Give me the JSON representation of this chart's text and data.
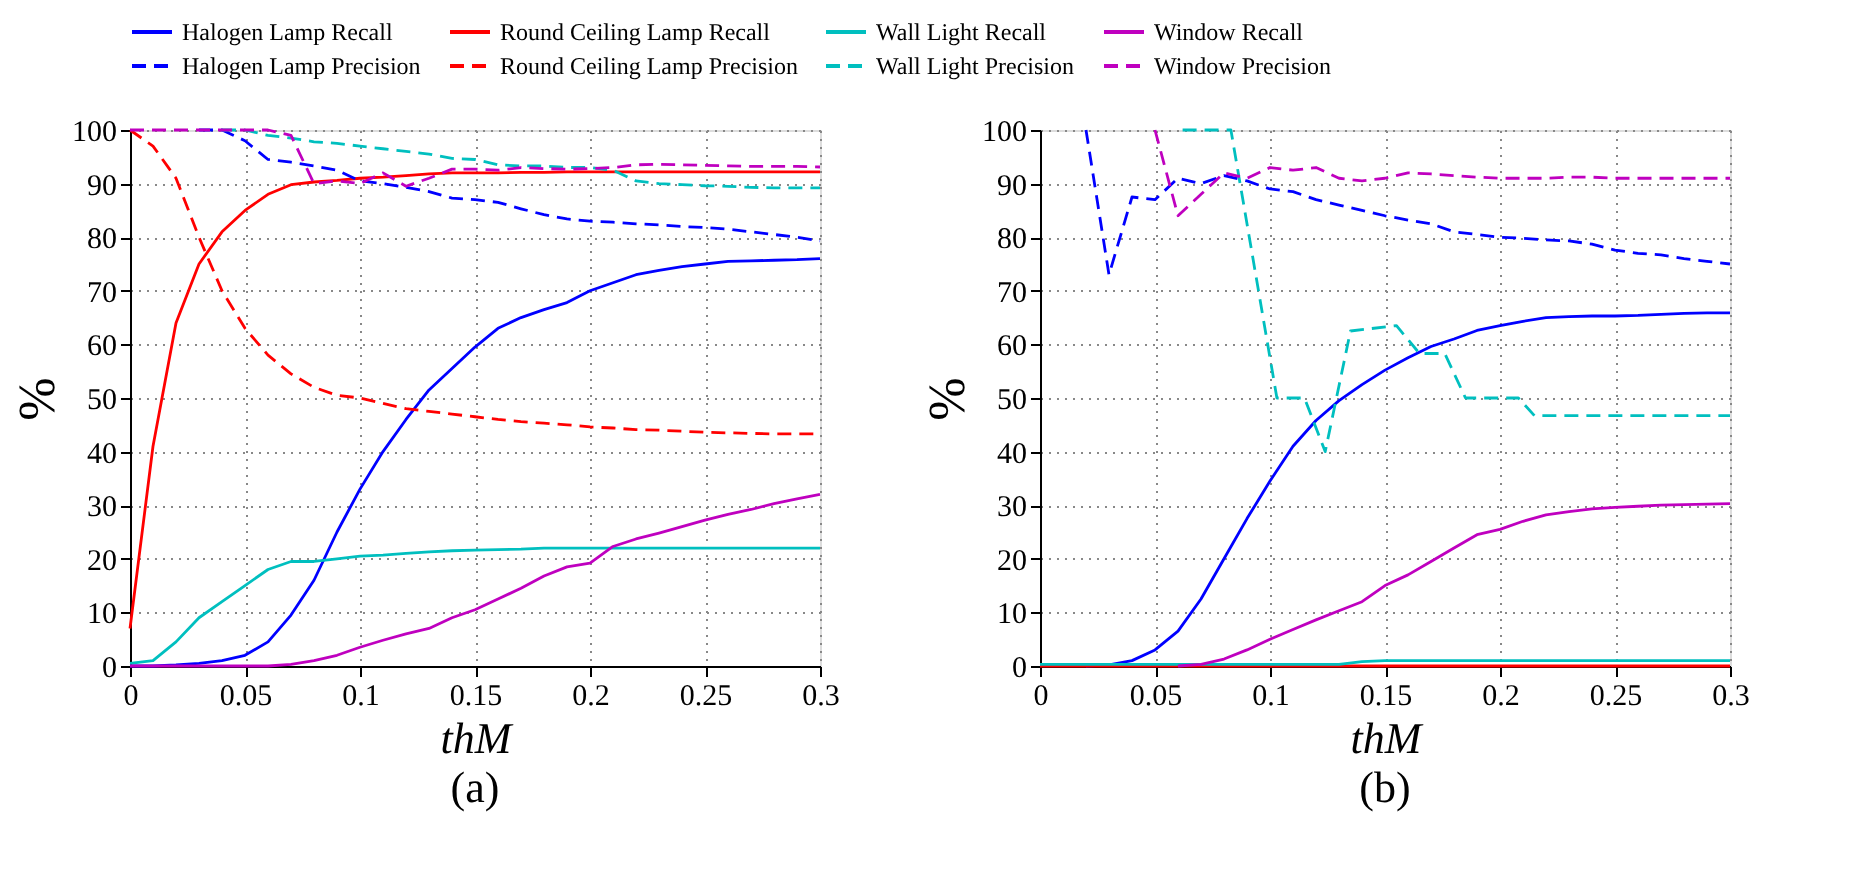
{
  "chart_data": [
    {
      "type": "line",
      "xlabel": "thM",
      "ylabel": "%",
      "annotations": [
        "(a)"
      ],
      "xlim": [
        0,
        0.3
      ],
      "ylim": [
        0,
        100
      ],
      "xticks": [
        0,
        0.05,
        0.1,
        0.15,
        0.2,
        0.25,
        0.3
      ],
      "yticks": [
        0,
        10,
        20,
        30,
        40,
        50,
        60,
        70,
        80,
        90,
        100
      ],
      "grid": true,
      "legend": "top",
      "x": [
        0,
        0.01,
        0.02,
        0.03,
        0.04,
        0.05,
        0.06,
        0.07,
        0.08,
        0.09,
        0.1,
        0.11,
        0.12,
        0.13,
        0.14,
        0.15,
        0.16,
        0.17,
        0.18,
        0.19,
        0.2,
        0.21,
        0.22,
        0.23,
        0.24,
        0.25,
        0.26,
        0.27,
        0.28,
        0.29,
        0.3
      ],
      "series": [
        {
          "name": "Halogen Lamp Recall",
          "color": "#0000ff",
          "line_style": "solid",
          "values": [
            0,
            0,
            0.2,
            0.5,
            1,
            2,
            4.5,
            9.5,
            16,
            25,
            33,
            40,
            46,
            51.5,
            55.5,
            59.5,
            63,
            65,
            66.5,
            67.8,
            70,
            71.5,
            73,
            73.8,
            74.5,
            75,
            75.5,
            75.6,
            75.7,
            75.8,
            76
          ]
        },
        {
          "name": "Round Ceiling Lamp Recall",
          "color": "#ff0000",
          "line_style": "solid",
          "values": [
            7,
            41,
            64,
            75,
            81,
            85,
            88,
            89.8,
            90.3,
            90.6,
            91,
            91.2,
            91.5,
            91.8,
            92,
            92,
            92,
            92.1,
            92.1,
            92.2,
            92.2,
            92.2,
            92.2,
            92.2,
            92.2,
            92.2,
            92.2,
            92.2,
            92.2,
            92.2,
            92.2
          ]
        },
        {
          "name": "Wall Light Recall",
          "color": "#00bfbf",
          "line_style": "solid",
          "values": [
            0.5,
            1,
            4.5,
            9,
            12,
            15,
            18,
            19.5,
            19.5,
            20,
            20.5,
            20.7,
            21,
            21.3,
            21.5,
            21.6,
            21.7,
            21.8,
            22,
            22,
            22,
            22,
            22,
            22,
            22,
            22,
            22,
            22,
            22,
            22,
            22
          ]
        },
        {
          "name": "Window Recall",
          "color": "#bf00bf",
          "line_style": "solid",
          "values": [
            0,
            0,
            0,
            0,
            0,
            0,
            0,
            0.3,
            1,
            2,
            3.5,
            4.8,
            6,
            7,
            9,
            10.5,
            12.5,
            14.5,
            16.8,
            18.5,
            19.2,
            22.3,
            23.7,
            24.8,
            26,
            27.2,
            28.3,
            29.2,
            30.3,
            31.2,
            32
          ]
        },
        {
          "name": "Halogen Lamp Precision",
          "color": "#0000ff",
          "line_style": "dashed",
          "values": [
            null,
            null,
            null,
            100,
            100,
            98,
            94.5,
            94,
            93.3,
            92.5,
            90.5,
            90,
            89.3,
            88.5,
            87.3,
            87,
            86.5,
            85.3,
            84.2,
            83.4,
            83,
            82.8,
            82.5,
            82.3,
            82,
            81.8,
            81.5,
            81,
            80.5,
            80,
            79.3
          ]
        },
        {
          "name": "Round Ceiling Lamp Precision",
          "color": "#ff0000",
          "line_style": "dashed",
          "values": [
            100,
            97,
            91,
            80,
            70,
            63,
            58,
            54.5,
            52,
            50.5,
            50,
            49,
            48,
            47.5,
            47,
            46.5,
            46,
            45.6,
            45.3,
            45,
            44.6,
            44.4,
            44.1,
            44,
            43.8,
            43.6,
            43.5,
            43.4,
            43.3,
            43.3,
            43.3
          ]
        },
        {
          "name": "Wall Light Precision",
          "color": "#00bfbf",
          "line_style": "dashed",
          "values": [
            null,
            null,
            null,
            null,
            100,
            100,
            99,
            98.5,
            97.8,
            97.5,
            97,
            96.5,
            96,
            95.5,
            94.7,
            94.5,
            93.5,
            93.3,
            93.3,
            93,
            93,
            92.5,
            90.5,
            90,
            89.8,
            89.6,
            89.5,
            89.3,
            89.2,
            89.2,
            89.2
          ]
        },
        {
          "name": "Window Precision",
          "color": "#bf00bf",
          "line_style": "dashed",
          "values": [
            100,
            100,
            100,
            100,
            100,
            100,
            100,
            99,
            90,
            90.5,
            90,
            92,
            89.5,
            91,
            92.7,
            92.7,
            92.5,
            93,
            92.8,
            92.7,
            92.8,
            93,
            93.5,
            93.6,
            93.5,
            93.4,
            93.3,
            93.2,
            93.2,
            93.2,
            93.1
          ]
        }
      ]
    },
    {
      "type": "line",
      "xlabel": "thM",
      "ylabel": "%",
      "annotations": [
        "(b)"
      ],
      "xlim": [
        0,
        0.3
      ],
      "ylim": [
        0,
        100
      ],
      "xticks": [
        0,
        0.05,
        0.1,
        0.15,
        0.2,
        0.25,
        0.3
      ],
      "yticks": [
        0,
        10,
        20,
        30,
        40,
        50,
        60,
        70,
        80,
        90,
        100
      ],
      "grid": true,
      "legend": "top",
      "x": [
        0,
        0.01,
        0.02,
        0.03,
        0.04,
        0.05,
        0.06,
        0.07,
        0.08,
        0.09,
        0.1,
        0.11,
        0.12,
        0.13,
        0.14,
        0.15,
        0.16,
        0.17,
        0.18,
        0.19,
        0.2,
        0.21,
        0.22,
        0.23,
        0.24,
        0.25,
        0.26,
        0.27,
        0.28,
        0.29,
        0.3
      ],
      "series": [
        {
          "name": "Halogen Lamp Recall",
          "color": "#0000ff",
          "line_style": "solid",
          "values": [
            null,
            null,
            0,
            0.2,
            1,
            3,
            6.5,
            12.5,
            20,
            27.5,
            34.5,
            41,
            45.8,
            49.5,
            52.5,
            55.2,
            57.5,
            59.6,
            61,
            62.6,
            63.5,
            64.3,
            65,
            65.2,
            65.3,
            65.3,
            65.4,
            65.6,
            65.8,
            65.9,
            65.9
          ]
        },
        {
          "name": "Round Ceiling Lamp Recall",
          "color": "#ff0000",
          "line_style": "solid",
          "values": [
            0,
            0,
            0,
            0,
            0,
            0,
            0,
            0,
            0,
            0,
            0,
            0,
            0,
            0,
            0,
            0,
            0,
            0,
            0,
            0,
            0,
            0,
            0,
            0,
            0,
            0,
            0,
            0,
            0,
            0,
            0
          ]
        },
        {
          "name": "Wall Light Recall",
          "color": "#00bfbf",
          "line_style": "solid",
          "values": [
            0.3,
            0.3,
            0.3,
            0.3,
            0.3,
            0.3,
            0.3,
            0.3,
            0.3,
            0.3,
            0.3,
            0.3,
            0.3,
            0.3,
            0.8,
            1,
            1,
            1,
            1,
            1,
            1,
            1,
            1,
            1,
            1,
            1,
            1,
            1,
            1,
            1,
            1
          ]
        },
        {
          "name": "Window Recall",
          "color": "#bf00bf",
          "line_style": "solid",
          "values": [
            null,
            null,
            null,
            null,
            null,
            null,
            0,
            0.3,
            1.3,
            3,
            5,
            6.8,
            8.6,
            10.3,
            12,
            15,
            17,
            19.5,
            22,
            24.5,
            25.5,
            27,
            28.2,
            28.8,
            29.3,
            29.6,
            29.8,
            30,
            30.1,
            30.2,
            30.3
          ]
        },
        {
          "name": "Halogen Lamp Precision",
          "color": "#0000ff",
          "line_style": "dashed",
          "values": [
            null,
            null,
            100,
            73,
            87.5,
            87,
            91,
            90,
            91.5,
            90.5,
            89,
            88.5,
            87,
            86,
            85,
            84,
            83.2,
            82.5,
            81,
            80.5,
            80,
            79.8,
            79.5,
            79.3,
            78.7,
            77.6,
            77,
            76.7,
            76,
            75.5,
            75
          ]
        },
        {
          "name": "Wall Light Precision",
          "color": "#00bfbf",
          "line_style": "dashed",
          "x": [
            0.062,
            0.083,
            0.103,
            0.115,
            0.124,
            0.135,
            0.155,
            0.165,
            0.176,
            0.185,
            0.208,
            0.215,
            0.3
          ],
          "values": [
            100,
            100,
            50,
            50,
            40,
            62.5,
            63.5,
            58.3,
            58.3,
            50,
            50,
            46.7,
            46.7
          ]
        },
        {
          "name": "Window Precision",
          "color": "#bf00bf",
          "line_style": "dashed",
          "values": [
            null,
            null,
            null,
            null,
            null,
            100,
            84,
            88,
            92,
            91,
            93,
            92.5,
            93,
            91,
            90.5,
            91,
            92,
            91.8,
            91.5,
            91.2,
            91,
            91,
            91,
            91.2,
            91.2,
            91,
            91,
            91,
            91,
            91,
            91
          ]
        }
      ]
    }
  ]
}
